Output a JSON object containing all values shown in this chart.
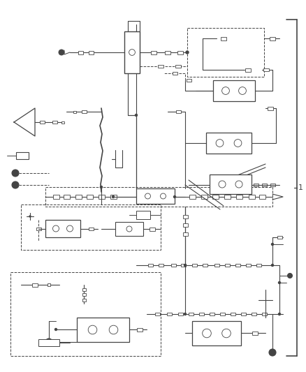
{
  "background_color": "#ffffff",
  "line_color": "#444444",
  "fig_width": 4.38,
  "fig_height": 5.33,
  "dpi": 100,
  "bracket_label": "1"
}
